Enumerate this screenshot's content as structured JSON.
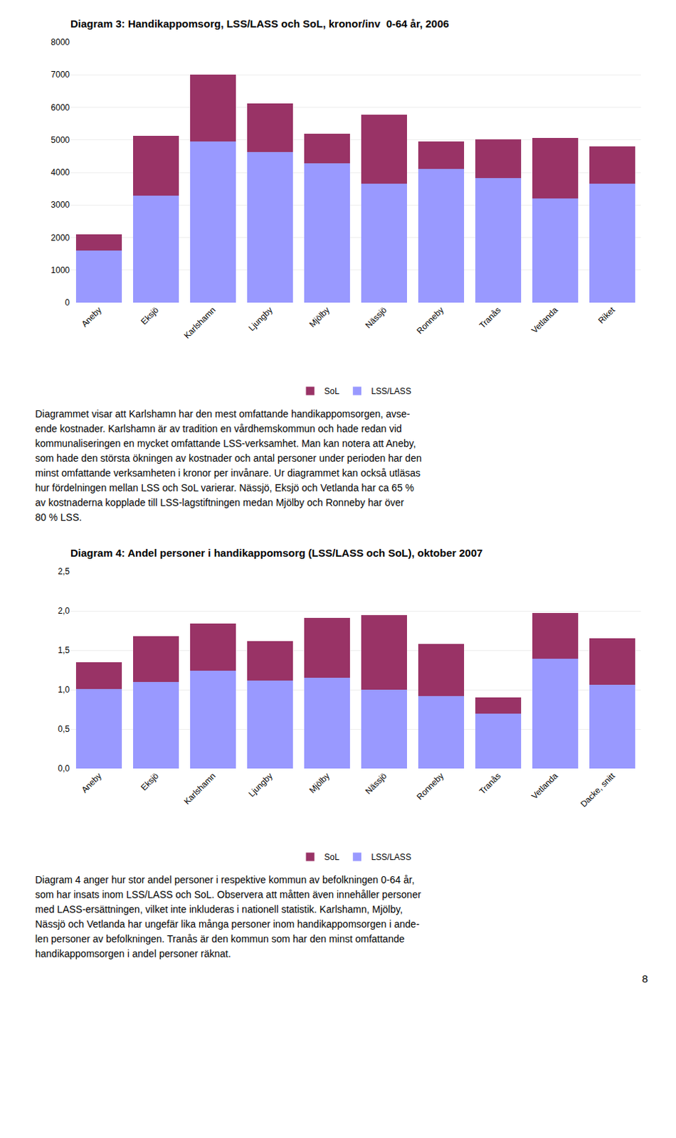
{
  "chart_data": [
    {
      "type": "bar",
      "title": "Diagram 3: Handikappomsorg, LSS/LASS och SoL, kronor/inv  0-64 år, 2006",
      "categories": [
        "Aneby",
        "Eksjö",
        "Karlshamn",
        "Ljungby",
        "Mjölby",
        "Nässjö",
        "Ronneby",
        "Tranås",
        "Vetlanda",
        "Riket"
      ],
      "series": [
        {
          "name": "LSS/LASS",
          "color": "#9999FF",
          "values": [
            1600,
            3280,
            4950,
            4620,
            4280,
            3650,
            4100,
            3820,
            3200,
            3650
          ]
        },
        {
          "name": "SoL",
          "color": "#993366",
          "values": [
            500,
            1850,
            2050,
            1500,
            900,
            2130,
            860,
            1200,
            1850,
            1160
          ]
        }
      ],
      "stacked": true,
      "ylim": [
        0,
        8000
      ],
      "yticks": [
        0,
        1000,
        2000,
        3000,
        4000,
        5000,
        6000,
        7000,
        8000
      ],
      "grid": true,
      "legend": "bottom"
    },
    {
      "type": "bar",
      "title": "Diagram 4: Andel personer i handikappomsorg (LSS/LASS och SoL), oktober 2007",
      "categories": [
        "Aneby",
        "Eksjö",
        "Karlshamn",
        "Ljungby",
        "Mjölby",
        "Nässjö",
        "Ronneby",
        "Tranås",
        "Vetlanda",
        "Dacke, snitt"
      ],
      "series": [
        {
          "name": "LSS/LASS",
          "color": "#9999FF",
          "values": [
            1.01,
            1.1,
            1.24,
            1.12,
            1.15,
            1.0,
            0.92,
            0.7,
            1.39,
            1.06
          ]
        },
        {
          "name": "SoL",
          "color": "#993366",
          "values": [
            0.34,
            0.58,
            0.6,
            0.5,
            0.76,
            0.95,
            0.66,
            0.2,
            0.58,
            0.59
          ]
        }
      ],
      "stacked": true,
      "ylim": [
        0,
        2.5
      ],
      "yticks": [
        {
          "value": 0.0,
          "label": "0,0"
        },
        {
          "value": 0.5,
          "label": "0,5"
        },
        {
          "value": 1.0,
          "label": "1,0"
        },
        {
          "value": 1.5,
          "label": "1,5"
        },
        {
          "value": 2.0,
          "label": "2,0"
        },
        {
          "value": 2.5,
          "label": "2,5"
        }
      ],
      "grid": true,
      "legend": "bottom"
    }
  ],
  "paragraphs": [
    [
      "Diagrammet visar att Karlshamn har den mest omfattande handikappomsorgen, avse-",
      "ende kostnader. Karlshamn är av tradition en vårdhemskommun och hade redan vid",
      "kommunaliseringen en mycket omfattande LSS-verksamhet. Man kan notera att Aneby,",
      "som hade den största ökningen av kostnader och antal personer under perioden har den",
      "minst omfattande verksamheten i kronor per invånare. Ur diagrammet kan också utläsas",
      "hur fördelningen mellan LSS och SoL varierar. Nässjö, Eksjö och Vetlanda har ca 65 %",
      "av kostnaderna kopplade till LSS-lagstiftningen medan Mjölby och Ronneby har över",
      "80 % LSS."
    ],
    [
      "Diagram 4 anger hur stor andel personer i respektive kommun av befolkningen 0-64 år,",
      "som har insats inom LSS/LASS och SoL. Observera att måtten även innehåller personer",
      "med LASS-ersättningen, vilket inte inkluderas i nationell statistik. Karlshamn, Mjölby,",
      "Nässjö och Vetlanda har ungefär lika många personer inom handikappomsorgen i ande-",
      "len personer av befolkningen. Tranås är den kommun som har den minst omfattande",
      "handikappomsorgen i andel personer räknat."
    ]
  ],
  "page_number": "8"
}
